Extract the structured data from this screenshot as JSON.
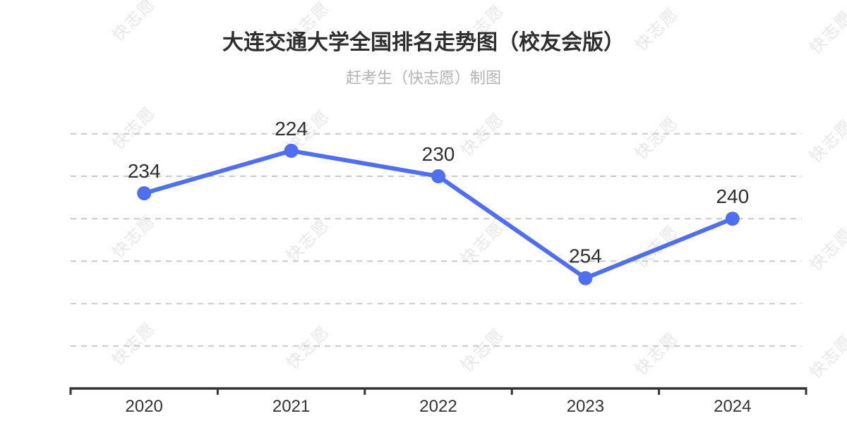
{
  "header": {
    "title": "大连交通大学全国排名走势图（校友会版）",
    "subtitle": "赶考生（快志愿）制图"
  },
  "watermark": {
    "text": "快志愿",
    "color": "#e7e7e7"
  },
  "chart_data": {
    "type": "line",
    "title": "大连交通大学全国排名走势图（校友会版）",
    "subtitle": "赶考生（快志愿）制图",
    "categories": [
      "2020",
      "2021",
      "2022",
      "2023",
      "2024"
    ],
    "values": [
      234,
      224,
      230,
      254,
      240
    ],
    "point_labels": [
      "234",
      "224",
      "230",
      "254",
      "240"
    ],
    "xlabel": "",
    "ylabel": "",
    "y_axis": {
      "inverted": true,
      "gridline_values": [
        220,
        230,
        240,
        250,
        260,
        270
      ],
      "gridline_style": "dashed",
      "tick_labels_visible": false
    },
    "legend": "none",
    "colors": {
      "line": "#4f6ef0",
      "marker": "#4f6ef0",
      "gridline": "#c9c9c9",
      "axis": "#333333",
      "data_label": "#2f2f2f",
      "x_tick_label": "#333333"
    }
  }
}
